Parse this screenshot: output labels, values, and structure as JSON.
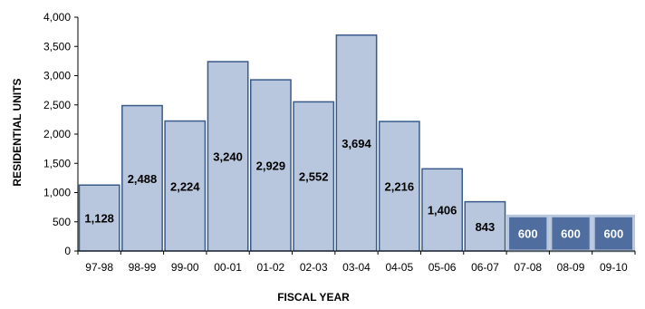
{
  "chart_data": {
    "type": "bar",
    "title": "",
    "xlabel": "FISCAL YEAR",
    "ylabel": "RESIDENTIAL UNITS",
    "ylim": [
      0,
      4000
    ],
    "yticks": [
      0,
      500,
      1000,
      1500,
      2000,
      2500,
      3000,
      3500,
      4000
    ],
    "ytick_labels": [
      "0",
      "500",
      "1,000",
      "1,500",
      "2,000",
      "2,500",
      "3,000",
      "3,500",
      "4,000"
    ],
    "grid": false,
    "legend": "none",
    "categories": [
      "97-98",
      "98-99",
      "99-00",
      "00-01",
      "01-02",
      "02-03",
      "03-04",
      "04-05",
      "05-06",
      "06-07",
      "07-08",
      "08-09",
      "09-10"
    ],
    "values": [
      1128,
      2488,
      2224,
      3240,
      2929,
      2552,
      3694,
      2216,
      1406,
      843,
      600,
      600,
      600
    ],
    "value_labels": [
      "1,128",
      "2,488",
      "2,224",
      "3,240",
      "2,929",
      "2,552",
      "3,694",
      "2,216",
      "1,406",
      "843",
      "600",
      "600",
      "600"
    ],
    "projected": [
      false,
      false,
      false,
      false,
      false,
      false,
      false,
      false,
      false,
      false,
      true,
      true,
      true
    ]
  },
  "colors": {
    "actual_fill": "#b8c7dd",
    "actual_stroke": "#3a5a8a",
    "projected_fill": "#4f6d9f",
    "projected_stroke": "#b8c7dd",
    "label_dark": "#000000",
    "label_light": "#ffffff"
  }
}
